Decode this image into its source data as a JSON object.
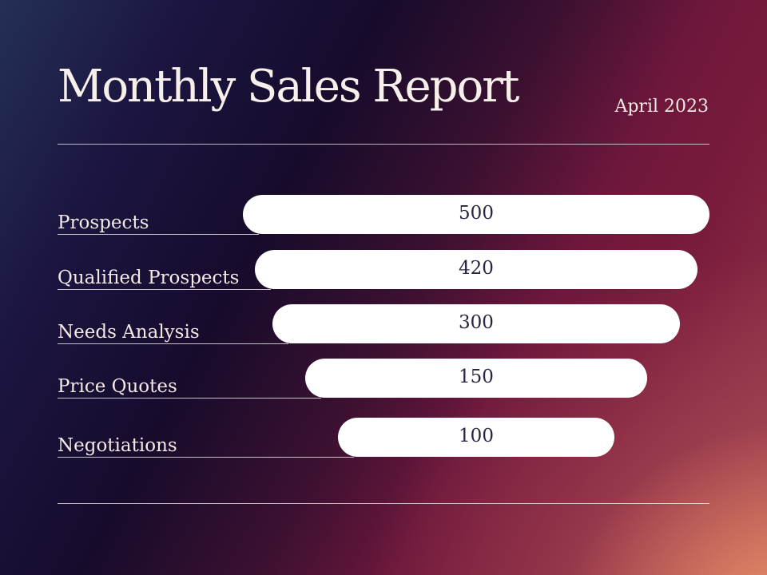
{
  "header": {
    "title": "Monthly Sales Report",
    "date": "April 2023"
  },
  "chart_data": {
    "type": "bar",
    "orientation": "horizontal-funnel",
    "title": "Monthly Sales Report",
    "categories": [
      "Prospects",
      "Qualified Prospects",
      "Needs Analysis",
      "Price Quotes",
      "Negotiations"
    ],
    "values": [
      500,
      420,
      300,
      150,
      100
    ],
    "data_labels": [
      "500",
      "420",
      "300",
      "150",
      "100"
    ],
    "legend": "none",
    "grid": false
  },
  "colors": {
    "bar": "#ffffff",
    "value_text": "#2a2440",
    "label_text": "#f3e9e4"
  }
}
